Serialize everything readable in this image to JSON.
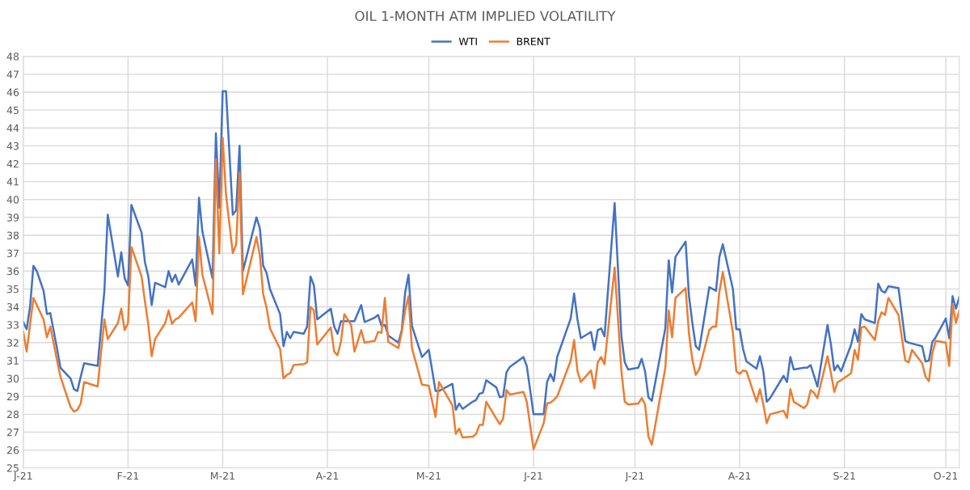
{
  "chart_data": {
    "type": "line",
    "title": "OIL 1-MONTH ATM IMPLIED VOLATILITY",
    "x": [
      "2021-01-01",
      "2021-01-02",
      "2021-01-03",
      "2021-01-04",
      "2021-01-05",
      "2021-01-07",
      "2021-01-08",
      "2021-01-09",
      "2021-01-11",
      "2021-01-12",
      "2021-01-15",
      "2021-01-16",
      "2021-01-17",
      "2021-01-18",
      "2021-01-19",
      "2021-01-23",
      "2021-01-25",
      "2021-01-26",
      "2021-01-29",
      "2021-01-30",
      "2021-01-31",
      "2021-02-01",
      "2021-02-02",
      "2021-02-05",
      "2021-02-06",
      "2021-02-07",
      "2021-02-08",
      "2021-02-09",
      "2021-02-12",
      "2021-02-13",
      "2021-02-14",
      "2021-02-15",
      "2021-02-16",
      "2021-02-20",
      "2021-02-21",
      "2021-02-22",
      "2021-02-23",
      "2021-02-26",
      "2021-02-27",
      "2021-02-28",
      "2021-03-01",
      "2021-03-02",
      "2021-03-04",
      "2021-03-05",
      "2021-03-06",
      "2021-03-07",
      "2021-03-11",
      "2021-03-12",
      "2021-03-13",
      "2021-03-14",
      "2021-03-15",
      "2021-03-18",
      "2021-03-19",
      "2021-03-20",
      "2021-03-21",
      "2021-03-22",
      "2021-03-25",
      "2021-03-26",
      "2021-03-27",
      "2021-03-28",
      "2021-03-29",
      "2021-04-02",
      "2021-04-03",
      "2021-04-04",
      "2021-04-05",
      "2021-04-06",
      "2021-04-08",
      "2021-04-09",
      "2021-04-11",
      "2021-04-12",
      "2021-04-15",
      "2021-04-16",
      "2021-04-17",
      "2021-04-18",
      "2021-04-19",
      "2021-04-22",
      "2021-04-23",
      "2021-04-24",
      "2021-04-25",
      "2021-04-26",
      "2021-04-29",
      "2021-05-01",
      "2021-05-03",
      "2021-05-04",
      "2021-05-08",
      "2021-05-09",
      "2021-05-10",
      "2021-05-11",
      "2021-05-14",
      "2021-05-15",
      "2021-05-16",
      "2021-05-17",
      "2021-05-18",
      "2021-05-21",
      "2021-05-22",
      "2021-05-23",
      "2021-05-24",
      "2021-05-25",
      "2021-05-29",
      "2021-05-30",
      "2021-06-01",
      "2021-06-04",
      "2021-06-05",
      "2021-06-06",
      "2021-06-07",
      "2021-06-08",
      "2021-06-12",
      "2021-06-13",
      "2021-06-14",
      "2021-06-15",
      "2021-06-18",
      "2021-06-19",
      "2021-06-20",
      "2021-06-21",
      "2021-06-22",
      "2021-06-25",
      "2021-06-27",
      "2021-06-28",
      "2021-06-29",
      "2021-07-02",
      "2021-07-03",
      "2021-07-04",
      "2021-07-05",
      "2021-07-06",
      "2021-07-10",
      "2021-07-11",
      "2021-07-12",
      "2021-07-13",
      "2021-07-16",
      "2021-07-17",
      "2021-07-18",
      "2021-07-19",
      "2021-07-20",
      "2021-07-23",
      "2021-07-24",
      "2021-07-25",
      "2021-07-26",
      "2021-07-27",
      "2021-07-30",
      "2021-07-31",
      "2021-08-01",
      "2021-08-02",
      "2021-08-03",
      "2021-08-06",
      "2021-08-07",
      "2021-08-08",
      "2021-08-09",
      "2021-08-10",
      "2021-08-14",
      "2021-08-15",
      "2021-08-16",
      "2021-08-17",
      "2021-08-20",
      "2021-08-21",
      "2021-08-22",
      "2021-08-23",
      "2021-08-24",
      "2021-08-27",
      "2021-08-28",
      "2021-08-29",
      "2021-08-30",
      "2021-08-31",
      "2021-09-03",
      "2021-09-04",
      "2021-09-05",
      "2021-09-06",
      "2021-09-07",
      "2021-09-10",
      "2021-09-11",
      "2021-09-12",
      "2021-09-13",
      "2021-09-14",
      "2021-09-17",
      "2021-09-19",
      "2021-09-20",
      "2021-09-21",
      "2021-09-24",
      "2021-09-25",
      "2021-09-26",
      "2021-09-27",
      "2021-09-28",
      "2021-10-01",
      "2021-10-02",
      "2021-10-03",
      "2021-10-04",
      "2021-10-05"
    ],
    "series": [
      {
        "name": "WTI",
        "color": "#4472c4",
        "values": [
          33.15,
          32.75,
          34.0,
          36.3,
          36.0,
          34.9,
          33.6,
          33.65,
          31.65,
          30.6,
          30.0,
          29.4,
          29.3,
          30.1,
          30.85,
          30.7,
          34.9,
          39.15,
          35.7,
          37.05,
          35.6,
          35.2,
          39.7,
          38.15,
          36.5,
          35.7,
          34.1,
          35.35,
          35.1,
          36.0,
          35.4,
          35.8,
          35.25,
          36.65,
          35.2,
          40.1,
          38.2,
          35.6,
          43.7,
          39.55,
          46.05,
          46.05,
          39.15,
          39.4,
          43.0,
          36.0,
          39.0,
          38.4,
          36.3,
          35.9,
          35.0,
          33.6,
          31.8,
          32.6,
          32.25,
          32.6,
          32.5,
          32.9,
          35.7,
          35.2,
          33.3,
          33.9,
          32.9,
          32.5,
          33.2,
          33.2,
          33.2,
          33.2,
          34.1,
          33.15,
          33.4,
          33.55,
          32.95,
          33.0,
          32.4,
          32.0,
          32.7,
          34.8,
          35.8,
          32.95,
          31.2,
          31.6,
          29.3,
          29.3,
          29.7,
          28.25,
          28.6,
          28.3,
          28.7,
          28.8,
          29.15,
          29.2,
          29.9,
          29.5,
          28.95,
          29.0,
          30.35,
          30.65,
          31.2,
          30.7,
          28.0,
          28.0,
          29.8,
          30.25,
          29.85,
          31.2,
          33.35,
          34.75,
          33.3,
          32.25,
          32.6,
          31.6,
          32.7,
          32.8,
          32.35,
          39.8,
          32.35,
          30.9,
          30.5,
          30.6,
          31.1,
          30.4,
          28.95,
          28.75,
          32.8,
          36.6,
          34.8,
          36.8,
          37.65,
          34.6,
          33.1,
          31.8,
          31.6,
          35.1,
          35.0,
          34.9,
          36.8,
          37.5,
          35.0,
          32.75,
          32.75,
          31.65,
          30.95,
          30.55,
          31.25,
          30.4,
          28.7,
          28.9,
          30.15,
          29.8,
          31.2,
          30.5,
          30.6,
          30.6,
          30.75,
          30.15,
          29.55,
          33.0,
          31.9,
          30.45,
          30.75,
          30.4,
          31.9,
          32.75,
          32.05,
          33.6,
          33.3,
          33.1,
          35.3,
          34.9,
          34.8,
          35.15,
          35.05,
          32.1,
          32.0,
          31.95,
          31.8,
          30.95,
          31.0,
          32.05,
          32.3,
          33.35,
          32.25,
          34.6,
          33.9,
          34.55
        ]
      },
      {
        "name": "BRENT",
        "color": "#ed7d31",
        "values": [
          32.6,
          31.5,
          33.0,
          34.5,
          34.1,
          33.3,
          32.3,
          32.9,
          31.0,
          30.1,
          28.4,
          28.15,
          28.25,
          28.6,
          29.8,
          29.55,
          33.3,
          32.2,
          33.1,
          33.9,
          32.7,
          33.1,
          37.35,
          35.7,
          34.3,
          33.0,
          31.25,
          32.2,
          33.1,
          33.8,
          33.05,
          33.3,
          33.4,
          34.25,
          33.2,
          37.9,
          35.8,
          33.6,
          42.25,
          37.0,
          43.45,
          40.25,
          37.0,
          37.5,
          41.5,
          34.7,
          37.9,
          36.9,
          34.7,
          33.95,
          32.8,
          31.65,
          30.0,
          30.2,
          30.3,
          30.75,
          30.8,
          30.9,
          34.0,
          33.8,
          31.9,
          32.85,
          31.5,
          31.3,
          32.05,
          33.6,
          33.0,
          31.5,
          32.7,
          32.0,
          32.1,
          32.6,
          32.55,
          34.5,
          32.05,
          31.7,
          32.6,
          33.8,
          34.6,
          31.7,
          29.65,
          29.6,
          27.85,
          29.8,
          28.5,
          26.9,
          27.2,
          26.7,
          26.75,
          26.9,
          27.4,
          27.4,
          28.7,
          27.75,
          27.45,
          27.75,
          29.35,
          29.1,
          29.25,
          28.7,
          26.05,
          27.5,
          28.6,
          28.65,
          28.8,
          29.0,
          31.0,
          32.15,
          30.4,
          29.8,
          30.45,
          29.45,
          30.9,
          31.2,
          30.8,
          36.2,
          30.4,
          28.7,
          28.55,
          28.6,
          28.9,
          28.55,
          26.75,
          26.3,
          30.6,
          33.8,
          32.3,
          34.5,
          35.05,
          32.5,
          31.05,
          30.2,
          30.5,
          32.7,
          32.9,
          32.9,
          34.85,
          35.95,
          32.55,
          30.4,
          30.25,
          30.45,
          30.4,
          28.7,
          29.4,
          28.55,
          27.5,
          28.0,
          28.2,
          27.8,
          29.4,
          28.7,
          28.35,
          28.55,
          29.35,
          29.2,
          28.9,
          31.25,
          30.3,
          29.25,
          29.8,
          29.9,
          30.3,
          31.6,
          31.05,
          32.85,
          32.9,
          32.15,
          33.2,
          33.7,
          33.55,
          34.5,
          33.55,
          31.0,
          30.9,
          31.6,
          30.85,
          30.1,
          29.85,
          31.4,
          32.1,
          32.0,
          30.7,
          34.15,
          33.1,
          33.8
        ]
      }
    ],
    "xlim": [
      "2021-01-01",
      "2021-10-05"
    ],
    "xticks": [
      {
        "value": "2021-01-01",
        "label": "J-21"
      },
      {
        "value": "2021-02-01",
        "label": "F-21"
      },
      {
        "value": "2021-03-01",
        "label": "M-21"
      },
      {
        "value": "2021-04-01",
        "label": "A-21"
      },
      {
        "value": "2021-05-01",
        "label": "M-21"
      },
      {
        "value": "2021-06-01",
        "label": "J-21"
      },
      {
        "value": "2021-07-01",
        "label": "J-21"
      },
      {
        "value": "2021-08-01",
        "label": "A-21"
      },
      {
        "value": "2021-09-01",
        "label": "S-21"
      },
      {
        "value": "2021-10-01",
        "label": "O-21"
      }
    ],
    "ylim": [
      25,
      48
    ],
    "yticks": [
      25,
      26,
      27,
      28,
      29,
      30,
      31,
      32,
      33,
      34,
      35,
      36,
      37,
      38,
      39,
      40,
      41,
      42,
      43,
      44,
      45,
      46,
      47,
      48
    ],
    "grid": true,
    "legend": "top",
    "line_style": "solid",
    "marker": "none"
  }
}
